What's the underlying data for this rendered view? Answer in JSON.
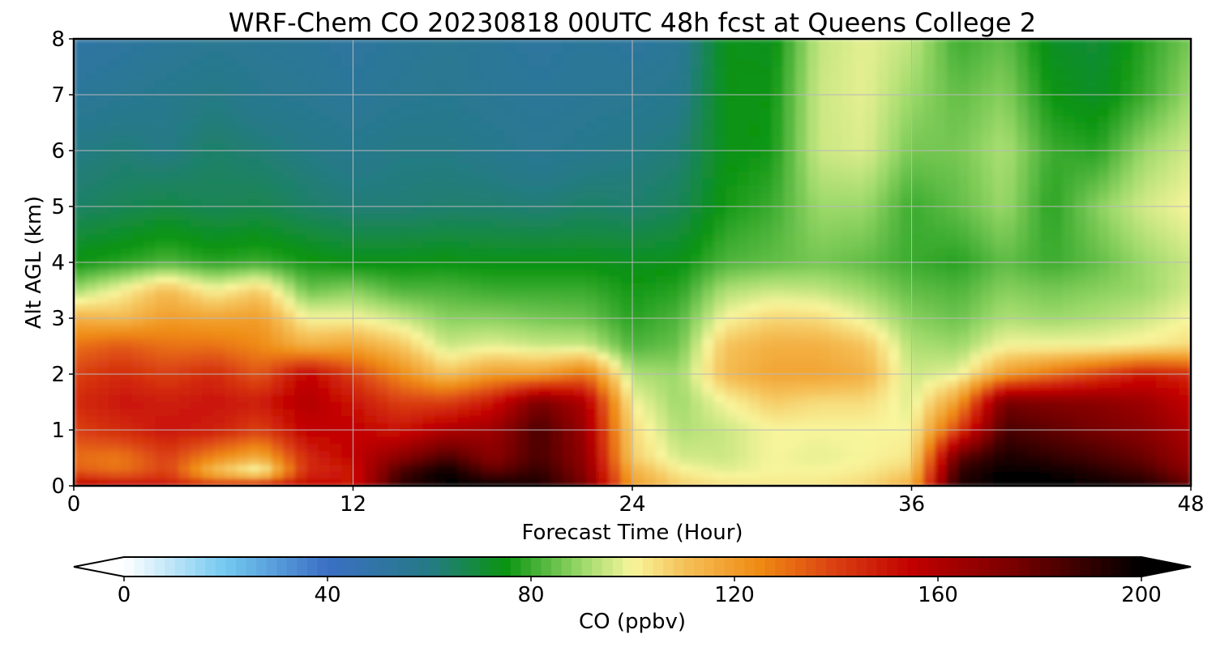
{
  "chart_data": {
    "type": "heatmap",
    "title": "WRF-Chem CO  20230818 00UTC 48h fcst at Queens College 2",
    "xlabel": "Forecast Time (Hour)",
    "ylabel": "Alt AGL (km)",
    "xlim": [
      0,
      48
    ],
    "ylim": [
      0,
      8
    ],
    "x_ticks": [
      0,
      12,
      24,
      36,
      48
    ],
    "y_ticks": [
      0,
      1,
      2,
      3,
      4,
      5,
      6,
      7,
      8
    ],
    "grid": true,
    "colorbar": {
      "label": "CO  (ppbv)",
      "min": 0,
      "max": 200,
      "ticks": [
        0,
        40,
        80,
        120,
        160,
        200
      ],
      "extend": "both",
      "stops": [
        {
          "value": 0,
          "color": "#ffffff"
        },
        {
          "value": 20,
          "color": "#73c8f0"
        },
        {
          "value": 40,
          "color": "#3b6fc4"
        },
        {
          "value": 60,
          "color": "#257a86"
        },
        {
          "value": 75,
          "color": "#0a9411"
        },
        {
          "value": 90,
          "color": "#9cd96a"
        },
        {
          "value": 100,
          "color": "#f8f59c"
        },
        {
          "value": 110,
          "color": "#f5c25a"
        },
        {
          "value": 125,
          "color": "#ef8a12"
        },
        {
          "value": 140,
          "color": "#da3f12"
        },
        {
          "value": 155,
          "color": "#c20000"
        },
        {
          "value": 175,
          "color": "#780000"
        },
        {
          "value": 200,
          "color": "#000000"
        }
      ]
    },
    "alt_km": [
      0,
      0.25,
      0.5,
      1,
      1.5,
      2,
      2.5,
      3,
      3.5,
      4,
      5,
      6,
      7,
      8
    ],
    "hours": [
      0,
      2,
      4,
      6,
      8,
      10,
      12,
      14,
      16,
      18,
      20,
      22,
      24,
      26,
      28,
      30,
      32,
      34,
      36,
      38,
      40,
      42,
      44,
      46,
      48
    ],
    "values": [
      [
        160,
        155,
        150,
        145,
        150,
        155,
        150,
        190,
        200,
        200,
        195,
        175,
        120,
        108,
        104,
        103,
        103,
        106,
        115,
        195,
        200,
        200,
        200,
        195,
        180
      ],
      [
        135,
        130,
        140,
        110,
        95,
        145,
        150,
        185,
        200,
        180,
        190,
        170,
        115,
        102,
        98,
        100,
        100,
        102,
        108,
        190,
        200,
        198,
        192,
        185,
        170
      ],
      [
        130,
        128,
        140,
        125,
        115,
        145,
        155,
        170,
        185,
        170,
        185,
        168,
        108,
        96,
        95,
        100,
        98,
        100,
        103,
        180,
        195,
        190,
        185,
        178,
        165
      ],
      [
        140,
        145,
        150,
        148,
        140,
        155,
        155,
        150,
        160,
        165,
        185,
        165,
        105,
        92,
        95,
        100,
        100,
        100,
        100,
        140,
        185,
        180,
        175,
        170,
        160
      ],
      [
        145,
        150,
        148,
        150,
        148,
        160,
        150,
        140,
        140,
        150,
        175,
        160,
        100,
        90,
        100,
        108,
        105,
        105,
        97,
        120,
        175,
        172,
        170,
        165,
        155
      ],
      [
        140,
        145,
        140,
        145,
        135,
        155,
        140,
        125,
        110,
        120,
        120,
        130,
        92,
        90,
        112,
        118,
        118,
        115,
        95,
        98,
        120,
        130,
        140,
        150,
        145
      ],
      [
        130,
        135,
        130,
        130,
        125,
        115,
        118,
        110,
        95,
        98,
        95,
        95,
        82,
        85,
        110,
        115,
        115,
        110,
        92,
        90,
        100,
        100,
        100,
        102,
        105
      ],
      [
        115,
        112,
        120,
        118,
        120,
        100,
        100,
        95,
        88,
        88,
        86,
        85,
        78,
        82,
        100,
        106,
        105,
        98,
        88,
        85,
        92,
        90,
        92,
        95,
        100
      ],
      [
        90,
        100,
        112,
        100,
        108,
        85,
        88,
        82,
        82,
        80,
        80,
        80,
        76,
        78,
        92,
        95,
        94,
        90,
        84,
        82,
        88,
        86,
        88,
        90,
        96
      ],
      [
        75,
        78,
        82,
        78,
        80,
        76,
        74,
        74,
        75,
        74,
        74,
        74,
        73,
        74,
        82,
        84,
        86,
        84,
        80,
        78,
        84,
        80,
        84,
        90,
        95
      ],
      [
        64,
        66,
        68,
        66,
        67,
        64,
        62,
        62,
        63,
        63,
        62,
        64,
        63,
        66,
        76,
        80,
        90,
        90,
        80,
        84,
        90,
        78,
        88,
        96,
        100
      ],
      [
        60,
        62,
        60,
        64,
        62,
        60,
        58,
        60,
        60,
        58,
        56,
        58,
        60,
        62,
        74,
        76,
        95,
        97,
        86,
        86,
        92,
        80,
        78,
        90,
        96
      ],
      [
        54,
        56,
        58,
        60,
        57,
        56,
        54,
        56,
        57,
        55,
        54,
        55,
        56,
        58,
        74,
        75,
        95,
        98,
        90,
        84,
        88,
        75,
        72,
        80,
        90
      ],
      [
        50,
        52,
        54,
        56,
        55,
        54,
        52,
        54,
        56,
        54,
        52,
        54,
        52,
        55,
        74,
        73,
        94,
        98,
        94,
        80,
        84,
        72,
        70,
        78,
        86
      ]
    ]
  }
}
